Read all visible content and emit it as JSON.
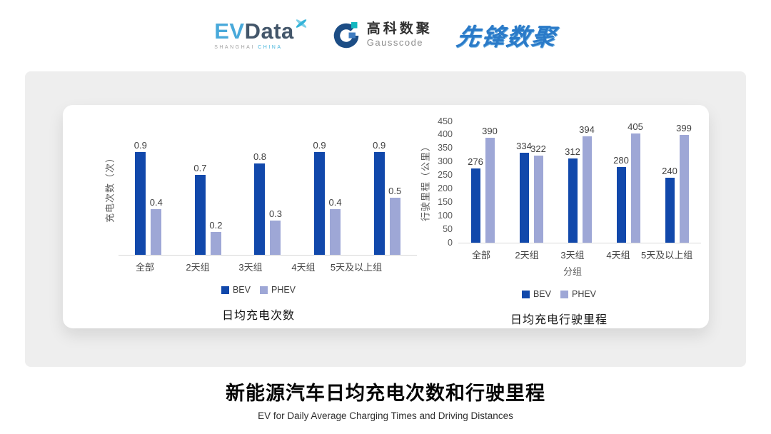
{
  "header": {
    "evdata": {
      "ev": "EV",
      "data": "Data",
      "sub_left": "SHANGHAI",
      "sub_right": "CHINA"
    },
    "gausscode": {
      "cn": "高科数聚",
      "en": "Gausscode"
    },
    "xianfeng": {
      "text": "先锋数聚"
    }
  },
  "footer": {
    "title": "新能源汽车日均充电次数和行驶里程",
    "subtitle": "EV for Daily Average Charging Times and Driving Distances"
  },
  "colors": {
    "bev": "#1148ab",
    "phev": "#9ea7d6",
    "axis_line": "#d9d9d9",
    "panel_bg": "#eeeeee",
    "evdata_cyan": "#49a9da",
    "evdata_dark": "#43566a",
    "gauss_navy": "#1c4d85",
    "gauss_teal": "#12b7c0",
    "xianfeng_blue": "#2a7ac8"
  },
  "chart_data": [
    {
      "type": "bar",
      "title": "日均充电次数",
      "ylabel": "充电次数（次）",
      "xlabel": "",
      "categories": [
        "全部",
        "2天组",
        "3天组",
        "4天组",
        "5天及以上组"
      ],
      "series": [
        {
          "name": "BEV",
          "color": "#1148ab",
          "values": [
            0.9,
            0.7,
            0.8,
            0.9,
            0.9
          ]
        },
        {
          "name": "PHEV",
          "color": "#9ea7d6",
          "values": [
            0.4,
            0.2,
            0.3,
            0.4,
            0.5
          ]
        }
      ],
      "ylim": [
        0,
        1.0
      ],
      "yticks": null,
      "grid": false,
      "value_labels": true,
      "legend_position": "bottom"
    },
    {
      "type": "bar",
      "title": "日均充电行驶里程",
      "ylabel": "行驶里程（公里）",
      "xlabel": "分组",
      "categories": [
        "全部",
        "2天组",
        "3天组",
        "4天组",
        "5天及以上组"
      ],
      "series": [
        {
          "name": "BEV",
          "color": "#1148ab",
          "values": [
            276,
            334,
            312,
            280,
            240
          ]
        },
        {
          "name": "PHEV",
          "color": "#9ea7d6",
          "values": [
            390,
            322,
            394,
            405,
            399
          ]
        }
      ],
      "ylim": [
        0,
        450
      ],
      "yticks": [
        0,
        50,
        100,
        150,
        200,
        250,
        300,
        350,
        400,
        450
      ],
      "grid": false,
      "value_labels": true,
      "legend_position": "bottom"
    }
  ]
}
